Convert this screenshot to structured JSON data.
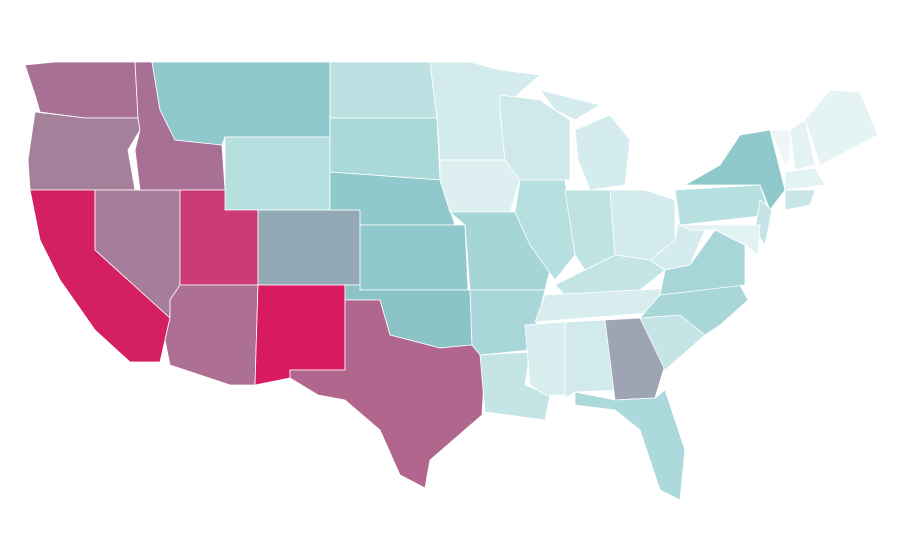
{
  "map": {
    "regions": [
      {
        "color": "#a87093"
      },
      {
        "color": "#a5809a"
      },
      {
        "color": "#d42062"
      },
      {
        "color": "#a67d9b"
      },
      {
        "color": "#a97095"
      },
      {
        "color": "#8fc9cb"
      },
      {
        "color": "#b6dfe0"
      },
      {
        "color": "#cc3b73"
      },
      {
        "color": "#93a9b6"
      },
      {
        "color": "#ad6f93"
      },
      {
        "color": "#d81b60"
      },
      {
        "color": "#bde1e2"
      },
      {
        "color": "#abd9da"
      },
      {
        "color": "#8fc9cb"
      },
      {
        "color": "#8fc9cb"
      },
      {
        "color": "#8cc3c6"
      },
      {
        "color": "#b1678d"
      },
      {
        "color": "#d3ebed"
      },
      {
        "color": "#ddeff0"
      },
      {
        "color": "#a5d5d7"
      },
      {
        "color": "#a9d6d8"
      },
      {
        "color": "#c4e4e6"
      },
      {
        "color": "#cfe9ea"
      },
      {
        "color": "#b6dfe0"
      },
      {
        "color": "#d5ecee"
      },
      {
        "color": "#bfe2e3"
      },
      {
        "color": "#d3ebed"
      },
      {
        "color": "#c4e4e6"
      },
      {
        "color": "#d8edee"
      },
      {
        "color": "#d8edee"
      },
      {
        "color": "#d1eaeb"
      },
      {
        "color": "#9ea4b3"
      },
      {
        "color": "#acd9db"
      },
      {
        "color": "#c4e4e6"
      },
      {
        "color": "#a9d6d8"
      },
      {
        "color": "#a7d5d8"
      },
      {
        "color": "#d5ecee"
      },
      {
        "color": "#b6dfe0"
      },
      {
        "color": "#8fc9cb"
      },
      {
        "color": "#c4e4e6"
      },
      {
        "color": "#e3f2f3"
      },
      {
        "color": "#eef6f6"
      },
      {
        "color": "#e3f2f3"
      },
      {
        "color": "#e5f3f4"
      },
      {
        "color": "#e3f2f3"
      },
      {
        "color": "#c9e6e7"
      },
      {
        "color": "#d5ecee"
      }
    ]
  }
}
